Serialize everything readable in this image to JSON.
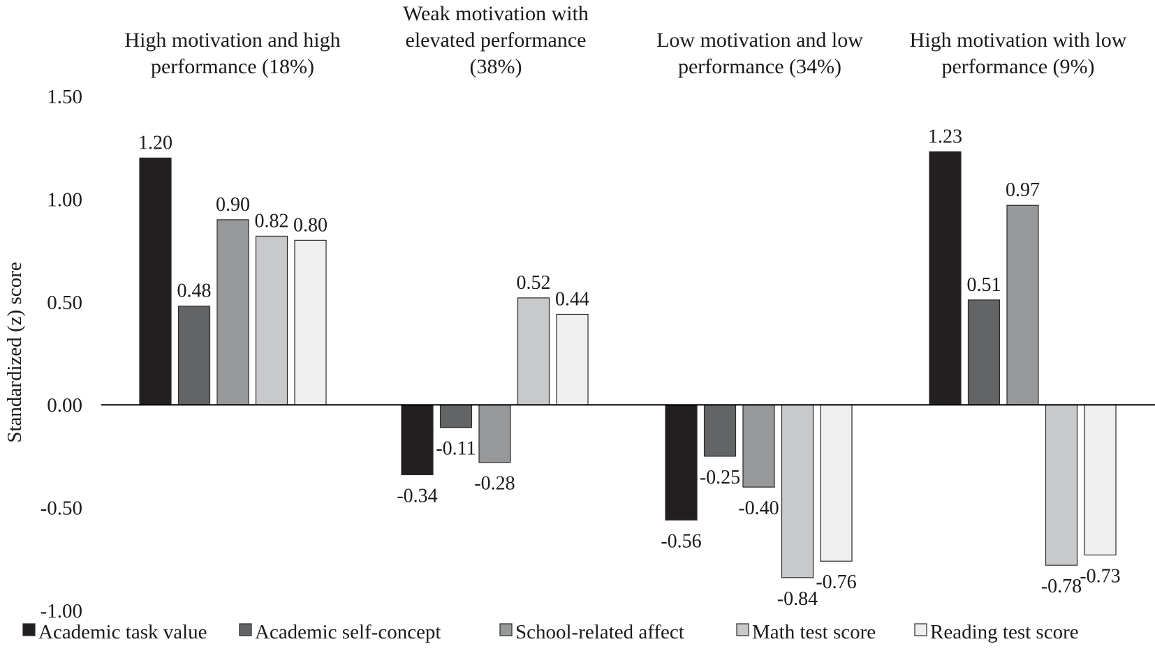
{
  "chart_data": {
    "type": "bar",
    "title": "",
    "ylabel": "Standardized (z) score",
    "xlabel": "",
    "ylim": [
      -1.0,
      1.5
    ],
    "yticks": [
      "-1.00",
      "-0.50",
      "0.00",
      "0.50",
      "1.00",
      "1.50"
    ],
    "yticks_values": [
      -1.0,
      -0.5,
      0.0,
      0.5,
      1.0,
      1.5
    ],
    "legend_position": "bottom",
    "grid": false,
    "groups": [
      {
        "title_lines": [
          "High motivation and high",
          "performance (18%)"
        ]
      },
      {
        "title_lines": [
          "Weak motivation with",
          "elevated performance",
          "(38%)"
        ]
      },
      {
        "title_lines": [
          "Low motivation and low",
          "performance (34%)"
        ]
      },
      {
        "title_lines": [
          "High motivation with low",
          "performance (9%)"
        ]
      }
    ],
    "series": [
      {
        "name": "Academic task value",
        "color": "#231f20",
        "values": [
          1.2,
          -0.34,
          -0.56,
          1.23
        ],
        "labels": [
          "1.20",
          "-0.34",
          "-0.56",
          "1.23"
        ]
      },
      {
        "name": "Academic self-concept",
        "color": "#636466",
        "values": [
          0.48,
          -0.11,
          -0.25,
          0.51
        ],
        "labels": [
          "0.48",
          "-0.11",
          "-0.25",
          "0.51"
        ]
      },
      {
        "name": "School-related affect",
        "color": "#97989a",
        "values": [
          0.9,
          -0.28,
          -0.4,
          0.97
        ],
        "labels": [
          "0.90",
          "-0.28",
          "-0.40",
          "0.97"
        ]
      },
      {
        "name": "Math test score",
        "color": "#c8c9cb",
        "values": [
          0.82,
          0.52,
          -0.84,
          -0.78
        ],
        "labels": [
          "0.82",
          "0.52",
          "-0.84",
          "-0.78"
        ]
      },
      {
        "name": "Reading test score",
        "color": "#efefef",
        "values": [
          0.8,
          0.44,
          -0.76,
          -0.73
        ],
        "labels": [
          "0.80",
          "0.44",
          "-0.76",
          "-0.73"
        ]
      }
    ]
  }
}
